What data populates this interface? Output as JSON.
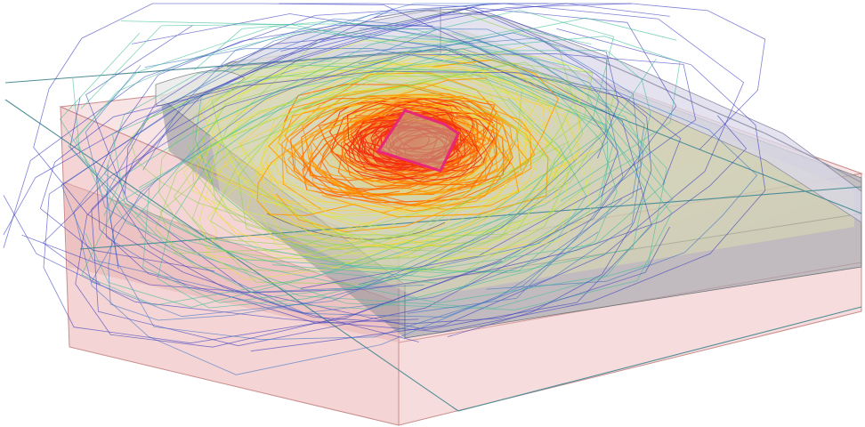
{
  "scene": {
    "colors": {
      "background": "#ffffff",
      "base_block": "#e8b4b4",
      "base_block_edge": "#c98c8c",
      "layer_olive": "#d8dcae",
      "layer_grey": "#9ea3a8",
      "layer_lavender": "#d9d8e8",
      "plane_line": "#4f8e98",
      "target_outline": "#e8267a"
    },
    "pathline_palette": [
      "#f32b10",
      "#ff6a00",
      "#ff9a00",
      "#ffd21a",
      "#d8ec34",
      "#8fd44a",
      "#3fbf9a",
      "#3a73c8",
      "#3a3ec0"
    ]
  }
}
